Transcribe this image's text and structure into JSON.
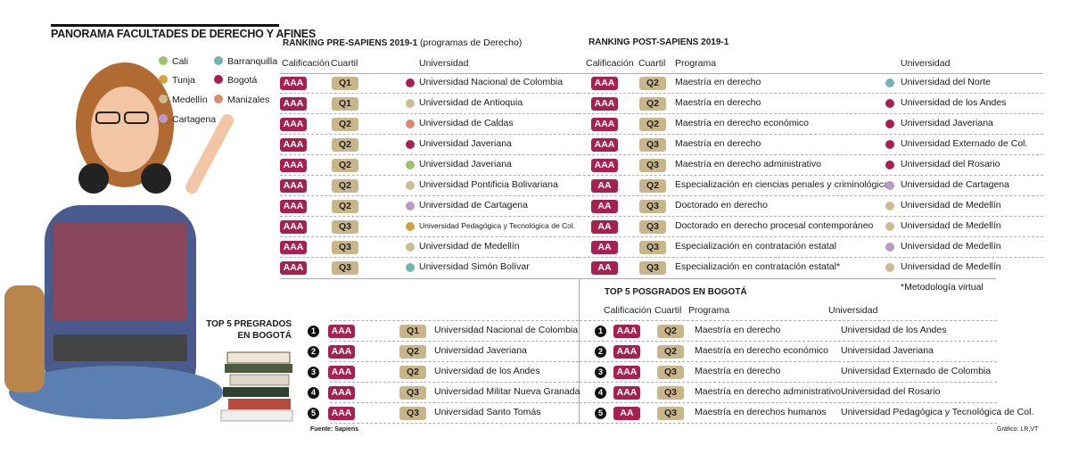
{
  "title": "PANORAMA FACULTADES DE DERECHO Y AFINES",
  "colors": {
    "rating": "#a8204f",
    "quartile": "#c9b58a"
  },
  "legend": [
    {
      "city": "Cali",
      "color": "#9dc26b"
    },
    {
      "city": "Barranquilla",
      "color": "#72b3b3"
    },
    {
      "city": "Tunja",
      "color": "#d4a23c"
    },
    {
      "city": "Bogotá",
      "color": "#a8204f"
    },
    {
      "city": "Medellín",
      "color": "#cdbb92"
    },
    {
      "city": "Manizales",
      "color": "#dc8b6d"
    },
    {
      "city": "Cartagena",
      "color": "#b99ac7"
    }
  ],
  "pre": {
    "title": "RANKING PRE-SAPIENS 2019-1",
    "subtitle": "(programas de Derecho)",
    "headers": {
      "rating": "Calificación",
      "quartile": "Cuartil",
      "university": "Universidad"
    },
    "rows": [
      {
        "rating": "AAA",
        "quartile": "Q1",
        "city": "Bogotá",
        "university": "Universidad Nacional de Colombia"
      },
      {
        "rating": "AAA",
        "quartile": "Q1",
        "city": "Medellín",
        "university": "Universidad de Antioquia"
      },
      {
        "rating": "AAA",
        "quartile": "Q2",
        "city": "Manizales",
        "university": "Universidad de Caldas"
      },
      {
        "rating": "AAA",
        "quartile": "Q2",
        "city": "Bogotá",
        "university": "Universidad Javeriana"
      },
      {
        "rating": "AAA",
        "quartile": "Q2",
        "city": "Cali",
        "university": "Universidad Javeriana"
      },
      {
        "rating": "AAA",
        "quartile": "Q2",
        "city": "Medellín",
        "university": "Universidad Pontificia Bolivariana"
      },
      {
        "rating": "AAA",
        "quartile": "Q2",
        "city": "Cartagena",
        "university": "Universidad de Cartagena"
      },
      {
        "rating": "AAA",
        "quartile": "Q3",
        "city": "Tunja",
        "university": "Universidad Pedagógica y Tecnológica de Col."
      },
      {
        "rating": "AAA",
        "quartile": "Q3",
        "city": "Medellín",
        "university": "Universidad de Medellín"
      },
      {
        "rating": "AAA",
        "quartile": "Q3",
        "city": "Barranquilla",
        "university": "Universidad Simón Bolívar"
      }
    ]
  },
  "post": {
    "title": "RANKING POST-SAPIENS 2019-1",
    "headers": {
      "rating": "Calificación",
      "quartile": "Cuartil",
      "program": "Programa",
      "university": "Universidad"
    },
    "rows": [
      {
        "rating": "AAA",
        "quartile": "Q2",
        "program": "Maestría en derecho",
        "city": "Barranquilla",
        "university": "Universidad del Norte"
      },
      {
        "rating": "AAA",
        "quartile": "Q2",
        "program": "Maestría en derecho",
        "city": "Bogotá",
        "university": "Universidad de los Andes"
      },
      {
        "rating": "AAA",
        "quartile": "Q2",
        "program": "Maestría en derecho económico",
        "city": "Bogotá",
        "university": "Universidad Javeriana"
      },
      {
        "rating": "AAA",
        "quartile": "Q3",
        "program": "Maestría en derecho",
        "city": "Bogotá",
        "university": "Universidad Externado de Col."
      },
      {
        "rating": "AAA",
        "quartile": "Q3",
        "program": "Maestría en derecho administrativo",
        "city": "Bogotá",
        "university": "Universidad del Rosario"
      },
      {
        "rating": "AA",
        "quartile": "Q2",
        "program": "Especialización en ciencias penales y criminológicas",
        "city": "Cartagena",
        "university": "Universidad de Cartagena"
      },
      {
        "rating": "AA",
        "quartile": "Q3",
        "program": "Doctorado en derecho",
        "city": "Medellín",
        "university": "Universidad de Medellín"
      },
      {
        "rating": "AA",
        "quartile": "Q3",
        "program": "Doctorado en derecho procesal contemporáneo",
        "city": "Medellín",
        "university": "Universidad de Medellín"
      },
      {
        "rating": "AA",
        "quartile": "Q3",
        "program": "Especialización en contratación estatal",
        "city": "Cartagena",
        "university": "Universidad de Medellín"
      },
      {
        "rating": "AA",
        "quartile": "Q3",
        "program": "Especialización en contratación estatal*",
        "city": "Medellín",
        "university": "Universidad de Medellín"
      }
    ],
    "footnote": "*Metodología virtual"
  },
  "top_pre": {
    "title_line1": "TOP 5 PREGRADOS",
    "title_line2": "EN BOGOTÁ",
    "rows": [
      {
        "rank": "1",
        "rating": "AAA",
        "quartile": "Q1",
        "university": "Universidad Nacional de Colombia"
      },
      {
        "rank": "2",
        "rating": "AAA",
        "quartile": "Q2",
        "university": "Universidad Javeriana"
      },
      {
        "rank": "3",
        "rating": "AAA",
        "quartile": "Q2",
        "university": "Universidad de los Andes"
      },
      {
        "rank": "4",
        "rating": "AAA",
        "quartile": "Q3",
        "university": "Universidad Militar Nueva Granada"
      },
      {
        "rank": "5",
        "rating": "AAA",
        "quartile": "Q3",
        "university": "Universidad Santo Tomás"
      }
    ]
  },
  "top_post": {
    "title": "TOP 5 POSGRADOS EN BOGOTÁ",
    "headers": {
      "rating": "Calificación",
      "quartile": "Cuartil",
      "program": "Programa",
      "university": "Universidad"
    },
    "rows": [
      {
        "rank": "1",
        "rating": "AAA",
        "quartile": "Q2",
        "program": "Maestría en derecho",
        "university": "Universidad de los Andes"
      },
      {
        "rank": "2",
        "rating": "AAA",
        "quartile": "Q2",
        "program": "Maestría en derecho económico",
        "university": "Universidad Javeriana"
      },
      {
        "rank": "3",
        "rating": "AAA",
        "quartile": "Q3",
        "program": "Maestría en derecho",
        "university": "Universidad Externado de Colombia"
      },
      {
        "rank": "4",
        "rating": "AAA",
        "quartile": "Q3",
        "program": "Maestría en derecho administrativo",
        "university": "Universidad del Rosario"
      },
      {
        "rank": "5",
        "rating": "AA",
        "quartile": "Q3",
        "program": "Maestría en derechos humanos",
        "university": "Universidad Pedagógica y Tecnológica de Col."
      }
    ]
  },
  "source": "Fuente: Sapiens",
  "credit": "Gráfico: LR,VT"
}
